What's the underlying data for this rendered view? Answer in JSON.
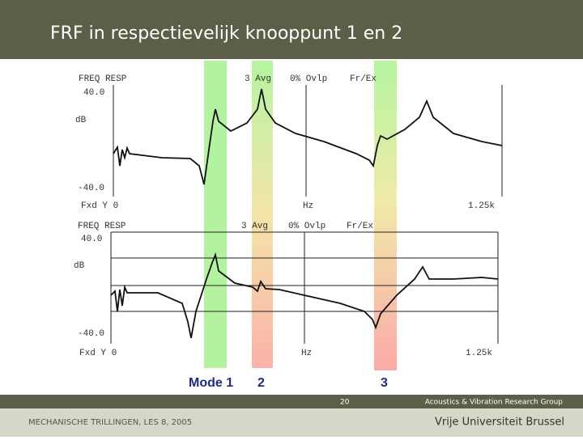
{
  "header": {
    "title": "FRF in respectievelijk knooppunt 1 en 2"
  },
  "plots": [
    {
      "title": "FREQ RESP",
      "avg": "3 Avg",
      "overlap": "0% Ovlp",
      "mode": "Fr/Ex",
      "top": "40.0",
      "unit": "dB",
      "bottom": "-40.0",
      "start": "Fxd Y 0",
      "x_unit": "Hz",
      "end": "1.25k"
    },
    {
      "title": "FREQ RESP",
      "avg": "3 Avg",
      "overlap": "0% Ovlp",
      "mode": "Fr/Ex",
      "top": "40.0",
      "unit": "dB",
      "bottom": "-40.0",
      "start": "Fxd Y 0",
      "x_unit": "Hz",
      "end": "1.25k"
    }
  ],
  "modes": [
    "Mode 1",
    "2",
    "3"
  ],
  "footer": {
    "page": "20",
    "group": "Acoustics & Vibration Research Group",
    "course": "MECHANISCHE TRILLINGEN, LES 8, 2005",
    "university": "Vrije Universiteit Brussel"
  }
}
